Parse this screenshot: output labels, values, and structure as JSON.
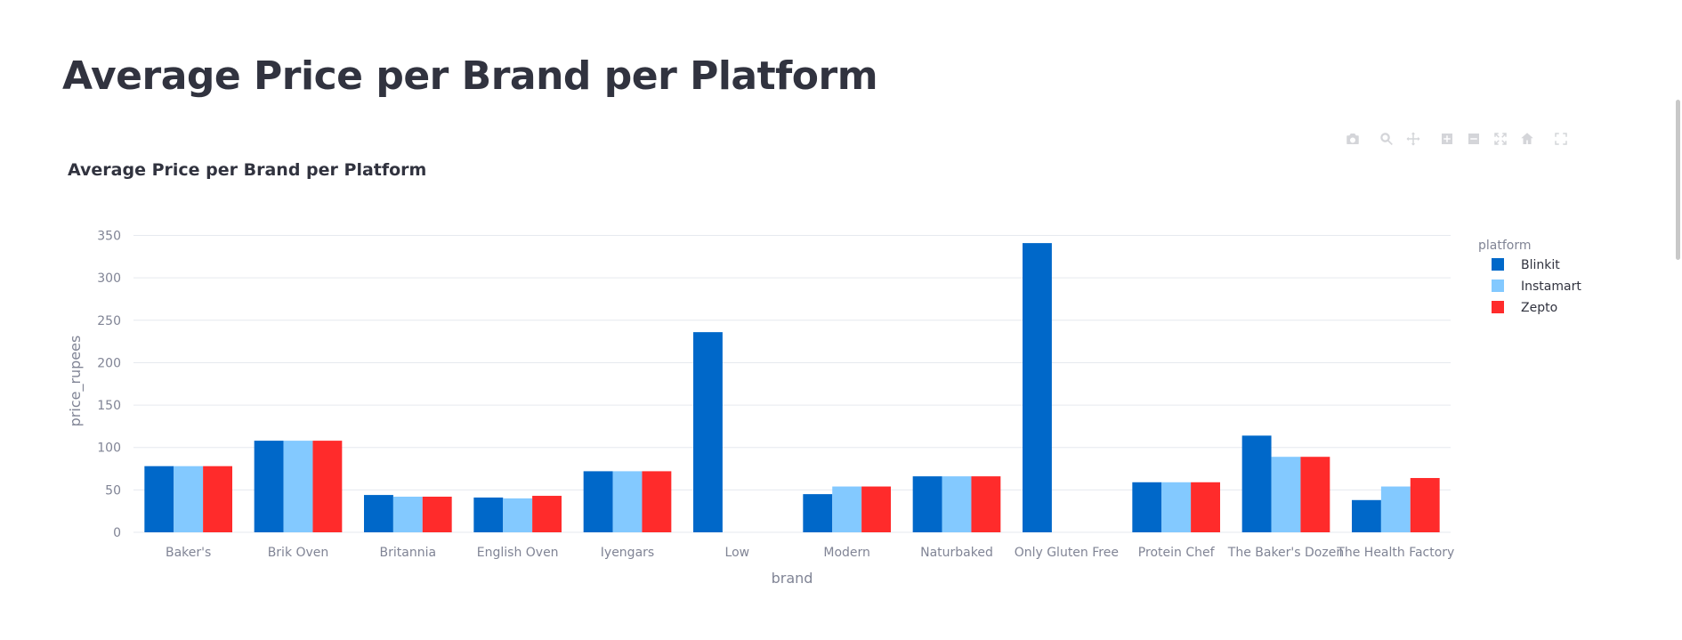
{
  "page": {
    "title": "Average Price per Brand per Platform"
  },
  "modebar": {
    "icons": [
      "camera-icon",
      "zoom-icon",
      "pan-icon",
      "zoom-in-icon",
      "zoom-out-icon",
      "autoscale-icon",
      "home-icon",
      "fullscreen-icon"
    ]
  },
  "chart_data": {
    "type": "bar",
    "title": "Average Price per Brand per Platform",
    "xlabel": "brand",
    "ylabel": "price_rupees",
    "ylim": [
      0,
      360
    ],
    "yticks": [
      0,
      50,
      100,
      150,
      200,
      250,
      300,
      350
    ],
    "grid": true,
    "legend_title": "platform",
    "legend_position": "top-right",
    "categories": [
      "Baker's",
      "Brik Oven",
      "Britannia",
      "English Oven",
      "Iyengars",
      "Low",
      "Modern",
      "Naturbaked",
      "Only Gluten Free",
      "Protein Chef",
      "The Baker's Dozen",
      "The Health Factory"
    ],
    "series": [
      {
        "name": "Blinkit",
        "color": "#0068c9",
        "values": [
          78,
          108,
          44,
          41,
          72,
          236,
          45,
          66,
          341,
          59,
          114,
          38
        ]
      },
      {
        "name": "Instamart",
        "color": "#83c9ff",
        "values": [
          78,
          108,
          42,
          40,
          72,
          null,
          54,
          66,
          null,
          59,
          89,
          54
        ]
      },
      {
        "name": "Zepto",
        "color": "#ff2b2b",
        "values": [
          78,
          108,
          42,
          43,
          72,
          null,
          54,
          66,
          null,
          59,
          89,
          64
        ]
      }
    ]
  }
}
